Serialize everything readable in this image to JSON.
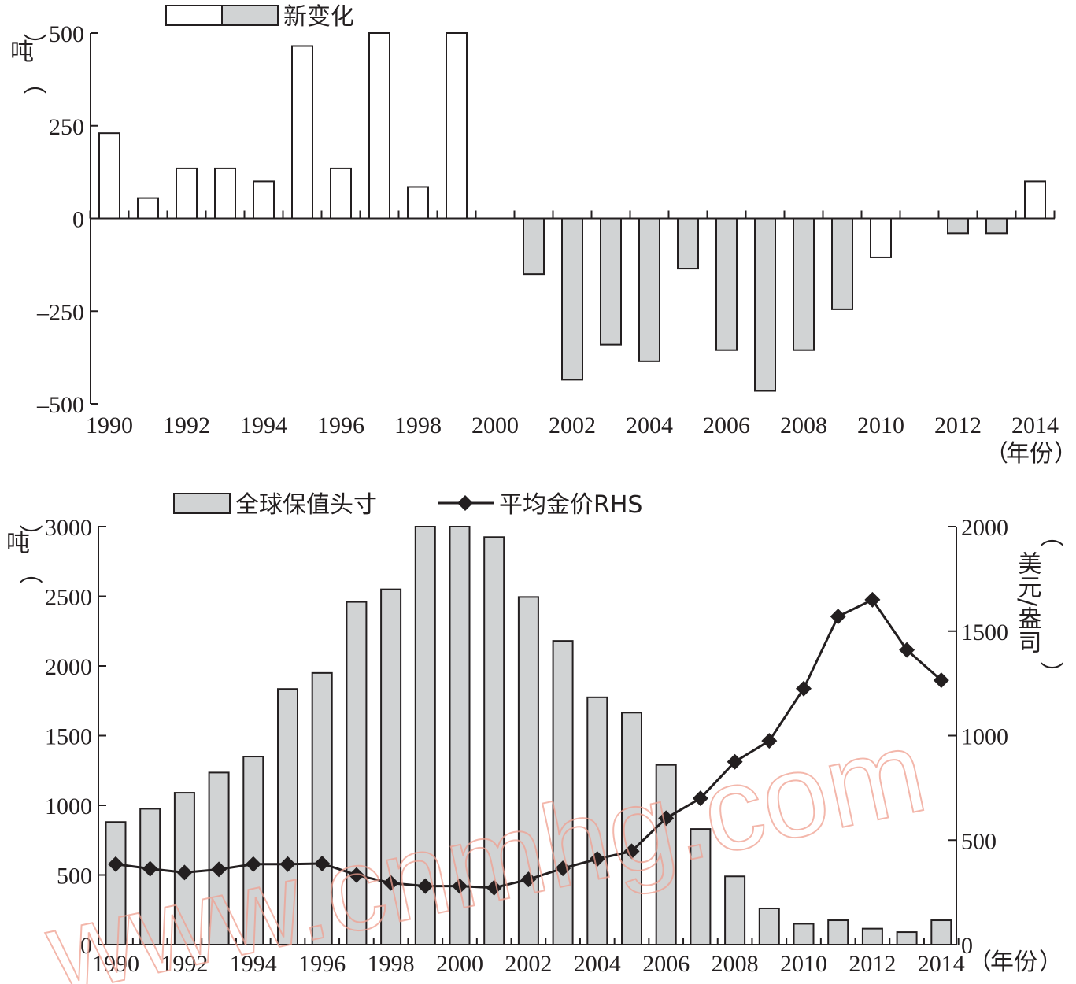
{
  "watermark": "www.cnmhg.com",
  "colors": {
    "bar_fill_gray": "#d1d3d4",
    "bar_fill_white": "#ffffff",
    "line": "#231f20",
    "axis": "#231f20"
  },
  "chart_data": [
    {
      "type": "bar",
      "legend": {
        "label": "新变化",
        "position": "top-center"
      },
      "ylabel": "吨",
      "xlabel": "年份",
      "ylim": [
        -500,
        500
      ],
      "yticks": [
        500,
        250,
        0,
        -250,
        -500
      ],
      "ytick_labels": [
        "500",
        "250",
        "0",
        "–250",
        "–500"
      ],
      "xtick_labels": [
        "1990",
        "1992",
        "1994",
        "1996",
        "1998",
        "2000",
        "2002",
        "2004",
        "2006",
        "2008",
        "2010",
        "2012",
        "2014"
      ],
      "x": [
        1990,
        1991,
        1992,
        1993,
        1994,
        1995,
        1996,
        1997,
        1998,
        1999,
        2000,
        2001,
        2002,
        2003,
        2004,
        2005,
        2006,
        2007,
        2008,
        2009,
        2010,
        2011,
        2012,
        2013,
        2014
      ],
      "values": [
        230,
        55,
        135,
        135,
        100,
        465,
        135,
        500,
        85,
        500,
        0,
        -150,
        -435,
        -340,
        -385,
        -135,
        -355,
        -465,
        -355,
        -245,
        -105,
        0,
        -40,
        -40,
        100
      ],
      "fills": [
        "white",
        "white",
        "white",
        "white",
        "white",
        "white",
        "white",
        "white",
        "white",
        "white",
        "gray",
        "gray",
        "gray",
        "gray",
        "gray",
        "gray",
        "gray",
        "gray",
        "gray",
        "gray",
        "white",
        "gray",
        "gray",
        "gray",
        "white"
      ]
    },
    {
      "type": "bar+line",
      "ylabel": "吨",
      "y2label": "美元/盎司",
      "xlabel": "年份",
      "ylim": [
        0,
        3000
      ],
      "y2lim": [
        0,
        2000
      ],
      "yticks": [
        0,
        500,
        1000,
        1500,
        2000,
        2500,
        3000
      ],
      "y2ticks": [
        0,
        500,
        1000,
        1500,
        2000
      ],
      "xtick_labels": [
        "1990",
        "1992",
        "1994",
        "1996",
        "1998",
        "2000",
        "2002",
        "2004",
        "2006",
        "2008",
        "2010",
        "2012",
        "2014"
      ],
      "x": [
        1990,
        1991,
        1992,
        1993,
        1994,
        1995,
        1996,
        1997,
        1998,
        1999,
        2000,
        2001,
        2002,
        2003,
        2004,
        2005,
        2006,
        2007,
        2008,
        2009,
        2010,
        2011,
        2012,
        2013,
        2014
      ],
      "series": [
        {
          "name": "全球保值头寸",
          "kind": "bar",
          "axis": "left",
          "values": [
            880,
            975,
            1090,
            1235,
            1350,
            1835,
            1950,
            2460,
            2550,
            3000,
            3000,
            2925,
            2495,
            2180,
            1775,
            1665,
            1290,
            830,
            490,
            260,
            150,
            175,
            115,
            90,
            175
          ]
        },
        {
          "name": "平均金价RHS",
          "kind": "line",
          "axis": "right",
          "marker": "diamond",
          "values": [
            385,
            363,
            345,
            360,
            385,
            385,
            388,
            333,
            295,
            280,
            280,
            272,
            312,
            365,
            410,
            447,
            605,
            700,
            875,
            975,
            1225,
            1570,
            1650,
            1410,
            1265
          ]
        }
      ]
    }
  ]
}
